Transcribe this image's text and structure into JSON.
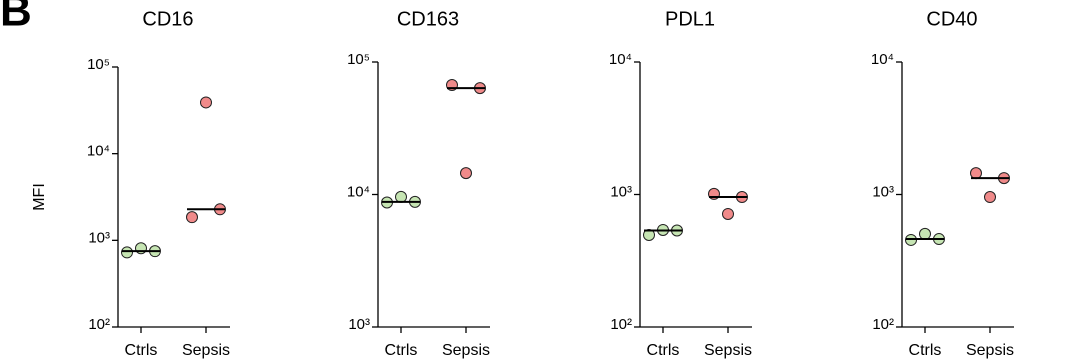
{
  "panel_label": "B",
  "chart_data": [
    {
      "type": "scatter",
      "title": "CD16",
      "ylabel": "MFI",
      "log_scale": true,
      "categories": [
        "Ctrls",
        "Sepsis"
      ],
      "colors": [
        "#c6e5b3",
        "#f08a8a"
      ],
      "values": [
        [
          725,
          810,
          750
        ],
        [
          1850,
          39000,
          2280
        ]
      ],
      "medians": [
        750,
        2280
      ],
      "ylim": [
        100,
        100000
      ],
      "yticks": [
        {
          "value": 100,
          "label": "10²"
        },
        {
          "value": 1000,
          "label": "10³"
        },
        {
          "value": 10000,
          "label": "10⁴"
        },
        {
          "value": 100000,
          "label": "10⁵"
        }
      ]
    },
    {
      "type": "scatter",
      "title": "CD163",
      "log_scale": true,
      "categories": [
        "Ctrls",
        "Sepsis"
      ],
      "colors": [
        "#c6e5b3",
        "#f08a8a"
      ],
      "values": [
        [
          8700,
          9600,
          8800
        ],
        [
          67000,
          14500,
          63500
        ]
      ],
      "medians": [
        8800,
        63500
      ],
      "ylim": [
        1000,
        100000
      ],
      "yticks": [
        {
          "value": 1000,
          "label": "10³"
        },
        {
          "value": 10000,
          "label": "10⁴"
        },
        {
          "value": 100000,
          "label": "10⁵"
        }
      ]
    },
    {
      "type": "scatter",
      "title": "PDL1",
      "log_scale": true,
      "categories": [
        "Ctrls",
        "Sepsis"
      ],
      "colors": [
        "#c6e5b3",
        "#f08a8a"
      ],
      "values": [
        [
          495,
          540,
          535
        ],
        [
          1010,
          713,
          957
        ]
      ],
      "medians": [
        535,
        957
      ],
      "ylim": [
        100,
        10000
      ],
      "yticks": [
        {
          "value": 100,
          "label": "10²"
        },
        {
          "value": 1000,
          "label": "10³"
        },
        {
          "value": 10000,
          "label": "10⁴"
        }
      ]
    },
    {
      "type": "scatter",
      "title": "CD40",
      "log_scale": true,
      "categories": [
        "Ctrls",
        "Sepsis"
      ],
      "colors": [
        "#c6e5b3",
        "#f08a8a"
      ],
      "values": [
        [
          454,
          504,
          461
        ],
        [
          1450,
          957,
          1330
        ]
      ],
      "medians": [
        461,
        1330
      ],
      "ylim": [
        100,
        10000
      ],
      "yticks": [
        {
          "value": 100,
          "label": "10²"
        },
        {
          "value": 1000,
          "label": "10³"
        },
        {
          "value": 10000,
          "label": "10⁴"
        }
      ]
    }
  ]
}
